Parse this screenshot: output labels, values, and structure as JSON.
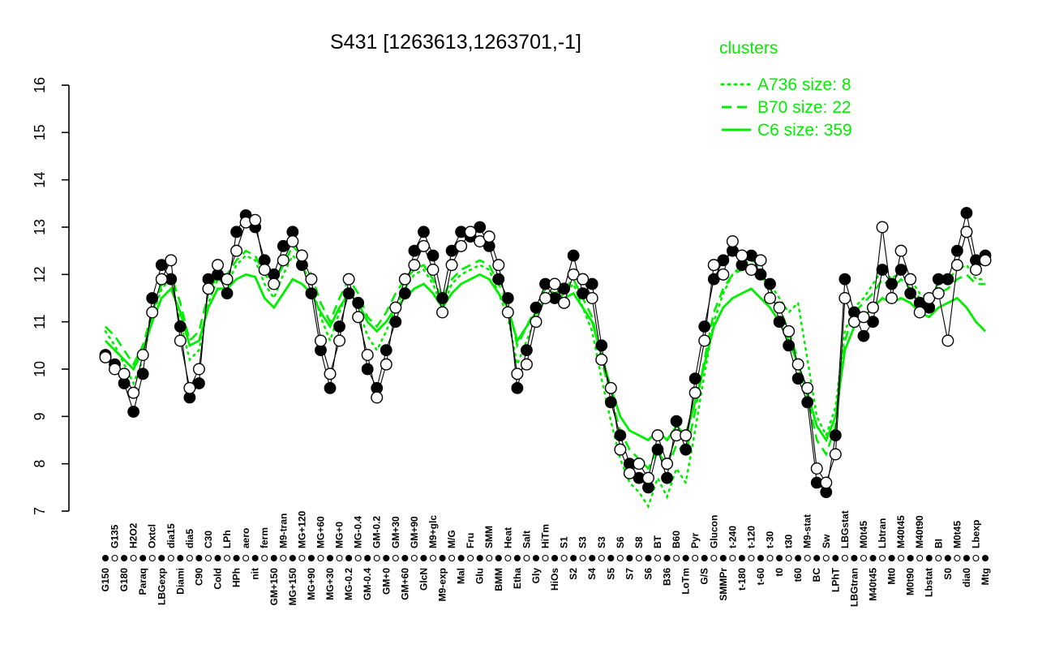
{
  "title": "S431 [1263613,1263701,-1]",
  "legend": {
    "title": "clusters",
    "color": "#00ee00",
    "entries": [
      {
        "label": "A736 size: 8",
        "style": "dotted"
      },
      {
        "label": "B70 size: 22",
        "style": "dashed"
      },
      {
        "label": "C6 size: 359",
        "style": "solid"
      }
    ]
  },
  "chart_data": {
    "type": "line",
    "title": "S431 [1263613,1263701,-1]",
    "ylim": [
      7,
      16
    ],
    "yticks": [
      7,
      8,
      9,
      10,
      11,
      12,
      13,
      14,
      15,
      16
    ],
    "grid": false,
    "legend_position": "top-right",
    "point_color": "#000000",
    "cluster_color": "#00ee00",
    "categories": [
      "G150",
      "G135",
      "G180",
      "H2O2",
      "Paraq",
      "Oxtcl",
      "LBGexp",
      "dia15",
      "Diami",
      "dia5",
      "C90",
      "C30",
      "Cold",
      "LPh",
      "HPh",
      "aero",
      "nit",
      "ferm",
      "GM+150",
      "M9-tran",
      "MG+150",
      "MG+120",
      "MG+90",
      "MG+60",
      "MG+30",
      "MG+0",
      "MG-0.2",
      "MG-0.4",
      "GM-0.4",
      "GM-0.2",
      "GM+0",
      "GM+30",
      "GM+60",
      "GM+90",
      "GlcN",
      "M9+glc",
      "M9-exp",
      "M/G",
      "Mal",
      "Fru",
      "Glu",
      "SMM",
      "BMM",
      "Heat",
      "Etha",
      "Salt",
      "Gly",
      "HiTm",
      "HiOs",
      "S1",
      "S2",
      "S3",
      "S4",
      "S3",
      "S5",
      "S6",
      "S7",
      "S8",
      "S6",
      "BT",
      "B36",
      "B60",
      "LoTm",
      "Pyr",
      "G/S",
      "Glucon",
      "SMMPr",
      "t-240",
      "t-180",
      "t-120",
      "t-60",
      "t-30",
      "t0",
      "t30",
      "t60",
      "M9-stat",
      "BC",
      "Sw",
      "LPhT",
      "LBGstat",
      "LBGtran",
      "M0t45",
      "M40t45",
      "Lbtran",
      "Mt0",
      "M40t45",
      "M0t90",
      "M40t90",
      "Lbstat",
      "BI",
      "S0",
      "M0t45",
      "dia0",
      "Lbexp",
      "Mtg"
    ],
    "series": [
      {
        "name": "probe-1263613",
        "marker": "filled-circle",
        "color": "#000000",
        "values": [
          10.3,
          10.1,
          9.7,
          9.1,
          9.9,
          11.5,
          12.2,
          11.9,
          10.9,
          9.4,
          9.7,
          11.9,
          12.0,
          11.6,
          12.9,
          13.25,
          13.0,
          12.3,
          12.0,
          12.6,
          12.9,
          12.2,
          11.6,
          10.4,
          9.6,
          10.9,
          11.6,
          11.4,
          10.0,
          9.6,
          10.4,
          11.0,
          11.6,
          12.5,
          12.9,
          12.4,
          11.5,
          12.5,
          12.9,
          12.8,
          13.0,
          12.6,
          11.9,
          11.5,
          9.6,
          10.4,
          11.3,
          11.8,
          11.5,
          11.7,
          12.4,
          11.6,
          11.8,
          10.5,
          9.3,
          8.6,
          8.0,
          7.7,
          7.5,
          8.3,
          7.7,
          8.9,
          8.3,
          9.8,
          10.9,
          11.9,
          12.3,
          12.5,
          12.2,
          12.4,
          12.0,
          11.8,
          11.0,
          10.5,
          9.8,
          9.3,
          7.6,
          7.4,
          8.6,
          11.9,
          11.2,
          10.7,
          11.0,
          12.1,
          11.8,
          12.1,
          11.6,
          11.4,
          11.3,
          11.9,
          11.9,
          12.5,
          13.3,
          12.3,
          12.4
        ]
      },
      {
        "name": "probe-1263701",
        "marker": "open-circle",
        "color": "#000000",
        "values": [
          10.25,
          10.0,
          9.9,
          9.5,
          10.3,
          11.2,
          11.9,
          12.3,
          10.6,
          9.6,
          10.0,
          11.7,
          12.2,
          11.9,
          12.5,
          13.1,
          13.15,
          12.1,
          11.8,
          12.3,
          12.7,
          12.4,
          11.9,
          10.6,
          9.9,
          10.6,
          11.9,
          11.1,
          10.3,
          9.4,
          10.1,
          11.3,
          11.9,
          12.2,
          12.6,
          12.1,
          11.2,
          12.2,
          12.6,
          12.9,
          12.7,
          12.8,
          12.2,
          11.2,
          9.9,
          10.1,
          11.0,
          11.5,
          11.8,
          11.4,
          12.0,
          11.9,
          11.5,
          10.2,
          9.6,
          8.3,
          7.8,
          8.0,
          7.7,
          8.6,
          8.0,
          8.6,
          8.6,
          9.5,
          10.6,
          12.2,
          12.0,
          12.7,
          12.4,
          12.1,
          12.3,
          11.5,
          11.3,
          10.8,
          10.1,
          9.6,
          7.9,
          7.6,
          8.2,
          11.5,
          11.0,
          11.1,
          11.3,
          13.0,
          11.5,
          12.5,
          11.9,
          11.2,
          11.5,
          11.6,
          10.6,
          12.2,
          12.9,
          12.1,
          12.3
        ]
      },
      {
        "name": "A736",
        "style": "dotted",
        "color": "#00ee00",
        "values": [
          10.8,
          10.5,
          10.1,
          9.7,
          10.2,
          11.1,
          11.7,
          11.9,
          11.0,
          10.2,
          10.4,
          11.4,
          11.9,
          11.8,
          12.2,
          12.4,
          12.3,
          11.8,
          11.5,
          12.0,
          12.4,
          12.2,
          11.8,
          11.1,
          10.6,
          11.2,
          11.7,
          11.3,
          10.7,
          10.4,
          10.8,
          11.3,
          11.7,
          12.0,
          12.1,
          11.8,
          11.3,
          11.8,
          12.0,
          12.1,
          12.2,
          12.1,
          11.6,
          11.1,
          10.1,
          10.6,
          11.1,
          11.6,
          11.4,
          11.6,
          11.8,
          11.3,
          10.8,
          9.8,
          8.9,
          8.1,
          7.6,
          7.4,
          7.1,
          7.7,
          7.3,
          7.9,
          7.6,
          8.7,
          9.9,
          11.0,
          11.6,
          12.0,
          12.2,
          12.3,
          12.1,
          11.8,
          11.5,
          11.2,
          11.4,
          10.2,
          9.0,
          8.6,
          9.2,
          10.8,
          11.3,
          11.5,
          11.8,
          12.1,
          11.9,
          12.1,
          11.9,
          11.6,
          11.5,
          11.8,
          11.9,
          12.1,
          12.2,
          11.9,
          11.9
        ]
      },
      {
        "name": "B70",
        "style": "dashed",
        "color": "#00ee00",
        "values": [
          10.9,
          10.7,
          10.4,
          10.1,
          10.5,
          11.2,
          11.8,
          12.0,
          11.4,
          10.6,
          10.8,
          11.6,
          12.0,
          12.0,
          12.3,
          12.5,
          12.4,
          12.0,
          11.8,
          12.2,
          12.6,
          12.4,
          12.0,
          11.4,
          11.0,
          11.5,
          11.9,
          11.6,
          11.1,
          10.9,
          11.2,
          11.6,
          11.9,
          12.1,
          12.2,
          11.9,
          11.5,
          11.9,
          12.1,
          12.2,
          12.3,
          12.2,
          11.8,
          11.4,
          10.5,
          10.9,
          11.3,
          11.7,
          11.6,
          11.7,
          11.9,
          11.5,
          11.1,
          10.2,
          9.4,
          8.7,
          8.3,
          8.1,
          7.9,
          8.3,
          7.9,
          8.4,
          8.2,
          9.1,
          10.2,
          11.2,
          11.7,
          12.0,
          12.1,
          12.2,
          12.0,
          11.7,
          11.3,
          10.8,
          10.2,
          9.4,
          8.5,
          8.2,
          8.8,
          10.6,
          11.2,
          11.4,
          11.6,
          11.9,
          11.7,
          11.9,
          11.7,
          11.5,
          11.4,
          11.6,
          11.7,
          11.9,
          12.0,
          11.8,
          11.8
        ]
      },
      {
        "name": "C6",
        "style": "solid",
        "color": "#00ee00",
        "values": [
          10.6,
          10.4,
          10.2,
          10.0,
          10.4,
          11.0,
          11.5,
          11.7,
          11.2,
          10.5,
          10.6,
          11.3,
          11.7,
          11.7,
          11.9,
          12.0,
          11.95,
          11.5,
          11.3,
          11.6,
          11.9,
          11.8,
          11.6,
          11.2,
          10.9,
          11.3,
          11.6,
          11.4,
          11.0,
          10.8,
          11.0,
          11.3,
          11.5,
          11.7,
          11.8,
          11.6,
          11.3,
          11.6,
          11.8,
          11.9,
          12.0,
          11.9,
          11.6,
          11.3,
          10.6,
          10.9,
          11.2,
          11.5,
          11.4,
          11.5,
          11.6,
          11.3,
          11.0,
          10.3,
          9.6,
          9.0,
          8.7,
          8.6,
          8.5,
          8.7,
          8.5,
          8.8,
          8.6,
          9.3,
          10.1,
          10.9,
          11.3,
          11.5,
          11.6,
          11.7,
          11.5,
          11.3,
          11.0,
          10.6,
          10.1,
          9.5,
          8.8,
          8.5,
          9.0,
          10.4,
          10.9,
          11.1,
          11.3,
          11.5,
          11.4,
          11.5,
          11.4,
          11.2,
          11.1,
          11.3,
          11.4,
          11.5,
          11.3,
          11.0,
          10.8
        ]
      }
    ]
  }
}
